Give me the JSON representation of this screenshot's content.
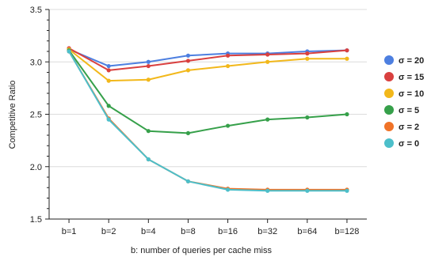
{
  "chart_data": {
    "type": "line",
    "xlabel": "b: number of queries per cache miss",
    "ylabel": "Competitive Ratio",
    "categories": [
      "b=1",
      "b=2",
      "b=4",
      "b=8",
      "b=16",
      "b=32",
      "b=64",
      "b=128"
    ],
    "ylim": [
      1.5,
      3.5
    ],
    "yticks": [
      1.5,
      2.0,
      2.5,
      3.0,
      3.5
    ],
    "ytick_labels": [
      "1.5",
      "2.0",
      "2.5",
      "3.0",
      "3.5"
    ],
    "grid": "horizontal",
    "legend_position": "right",
    "series": [
      {
        "name": "σ = 20",
        "color": "#4d7fe0",
        "values": [
          3.12,
          2.96,
          3.0,
          3.06,
          3.08,
          3.08,
          3.1,
          3.11
        ]
      },
      {
        "name": "σ = 15",
        "color": "#d9403f",
        "values": [
          3.13,
          2.92,
          2.96,
          3.01,
          3.06,
          3.07,
          3.08,
          3.11
        ]
      },
      {
        "name": "σ = 10",
        "color": "#f2b81b",
        "values": [
          3.12,
          2.82,
          2.83,
          2.92,
          2.96,
          3.0,
          3.03,
          3.03
        ]
      },
      {
        "name": "σ = 5",
        "color": "#36a04a",
        "values": [
          3.11,
          2.58,
          2.34,
          2.32,
          2.39,
          2.45,
          2.47,
          2.5
        ]
      },
      {
        "name": "σ = 2",
        "color": "#f07328",
        "values": [
          3.1,
          2.46,
          2.07,
          1.86,
          1.79,
          1.78,
          1.78,
          1.78
        ]
      },
      {
        "name": "σ = 0",
        "color": "#4cbfca",
        "values": [
          3.1,
          2.45,
          2.07,
          1.86,
          1.78,
          1.77,
          1.77,
          1.77
        ]
      }
    ]
  }
}
